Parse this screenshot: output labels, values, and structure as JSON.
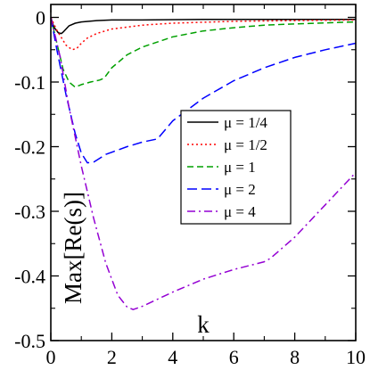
{
  "chart_data": {
    "type": "line",
    "xlabel": "k",
    "ylabel": "Max[Re(s)]",
    "xlim": [
      0,
      10
    ],
    "ylim": [
      -0.5,
      0.02
    ],
    "xticks": [
      0,
      2,
      4,
      6,
      8,
      10
    ],
    "yticks": [
      0,
      -0.1,
      -0.2,
      -0.3,
      -0.4,
      -0.5
    ],
    "xtick_labels": [
      "0",
      "2",
      "4",
      "6",
      "8",
      "10"
    ],
    "ytick_labels": [
      "0",
      "-0.1",
      "-0.2",
      "-0.3",
      "-0.4",
      "-0.5"
    ],
    "legend_position": "center-right",
    "grid": false,
    "series": [
      {
        "name": "μ = 1/4",
        "color": "#000000",
        "dash": "solid",
        "points": [
          [
            0,
            0
          ],
          [
            0.1,
            -0.015
          ],
          [
            0.25,
            -0.024
          ],
          [
            0.35,
            -0.025
          ],
          [
            0.42,
            -0.022
          ],
          [
            0.5,
            -0.018
          ],
          [
            0.6,
            -0.013
          ],
          [
            0.8,
            -0.009
          ],
          [
            1.0,
            -0.007
          ],
          [
            1.5,
            -0.005
          ],
          [
            2,
            -0.004
          ],
          [
            3,
            -0.004
          ],
          [
            5,
            -0.003
          ],
          [
            7,
            -0.003
          ],
          [
            10,
            -0.003
          ]
        ]
      },
      {
        "name": "μ = 1/2",
        "color": "#ff0000",
        "dash": "dotted",
        "points": [
          [
            0,
            0
          ],
          [
            0.2,
            -0.02
          ],
          [
            0.5,
            -0.043
          ],
          [
            0.7,
            -0.05
          ],
          [
            0.85,
            -0.048
          ],
          [
            1.0,
            -0.04
          ],
          [
            1.2,
            -0.032
          ],
          [
            1.5,
            -0.025
          ],
          [
            2,
            -0.018
          ],
          [
            3,
            -0.012
          ],
          [
            4,
            -0.009
          ],
          [
            6,
            -0.006
          ],
          [
            8,
            -0.005
          ],
          [
            10,
            -0.004
          ]
        ]
      },
      {
        "name": "μ = 1",
        "color": "#00a000",
        "dash": "dashed",
        "points": [
          [
            0,
            0
          ],
          [
            0.2,
            -0.04
          ],
          [
            0.4,
            -0.08
          ],
          [
            0.6,
            -0.1
          ],
          [
            0.8,
            -0.108
          ],
          [
            1.0,
            -0.104
          ],
          [
            1.3,
            -0.1
          ],
          [
            1.6,
            -0.097
          ],
          [
            1.75,
            -0.094
          ],
          [
            2.0,
            -0.078
          ],
          [
            2.5,
            -0.058
          ],
          [
            3,
            -0.046
          ],
          [
            4,
            -0.03
          ],
          [
            5,
            -0.021
          ],
          [
            6,
            -0.016
          ],
          [
            7,
            -0.012
          ],
          [
            8,
            -0.01
          ],
          [
            10,
            -0.007
          ]
        ]
      },
      {
        "name": "μ = 2",
        "color": "#0000ff",
        "dash": "longdash",
        "points": [
          [
            0,
            0
          ],
          [
            0.2,
            -0.05
          ],
          [
            0.5,
            -0.12
          ],
          [
            0.8,
            -0.18
          ],
          [
            1.0,
            -0.21
          ],
          [
            1.2,
            -0.225
          ],
          [
            1.4,
            -0.224
          ],
          [
            1.8,
            -0.212
          ],
          [
            2.5,
            -0.2
          ],
          [
            3,
            -0.193
          ],
          [
            3.5,
            -0.188
          ],
          [
            4,
            -0.16
          ],
          [
            5,
            -0.125
          ],
          [
            6,
            -0.098
          ],
          [
            7,
            -0.078
          ],
          [
            8,
            -0.062
          ],
          [
            9,
            -0.05
          ],
          [
            10,
            -0.04
          ]
        ]
      },
      {
        "name": "μ = 4",
        "color": "#9400d3",
        "dash": "dashdot",
        "points": [
          [
            0,
            0
          ],
          [
            0.3,
            -0.06
          ],
          [
            0.6,
            -0.14
          ],
          [
            1.0,
            -0.23
          ],
          [
            1.4,
            -0.31
          ],
          [
            1.8,
            -0.38
          ],
          [
            2.2,
            -0.43
          ],
          [
            2.5,
            -0.448
          ],
          [
            2.7,
            -0.452
          ],
          [
            3.0,
            -0.447
          ],
          [
            4.0,
            -0.425
          ],
          [
            5.0,
            -0.405
          ],
          [
            6.0,
            -0.39
          ],
          [
            7.0,
            -0.378
          ],
          [
            7.2,
            -0.373
          ],
          [
            8.0,
            -0.34
          ],
          [
            9.0,
            -0.29
          ],
          [
            10.0,
            -0.24
          ]
        ]
      }
    ]
  }
}
